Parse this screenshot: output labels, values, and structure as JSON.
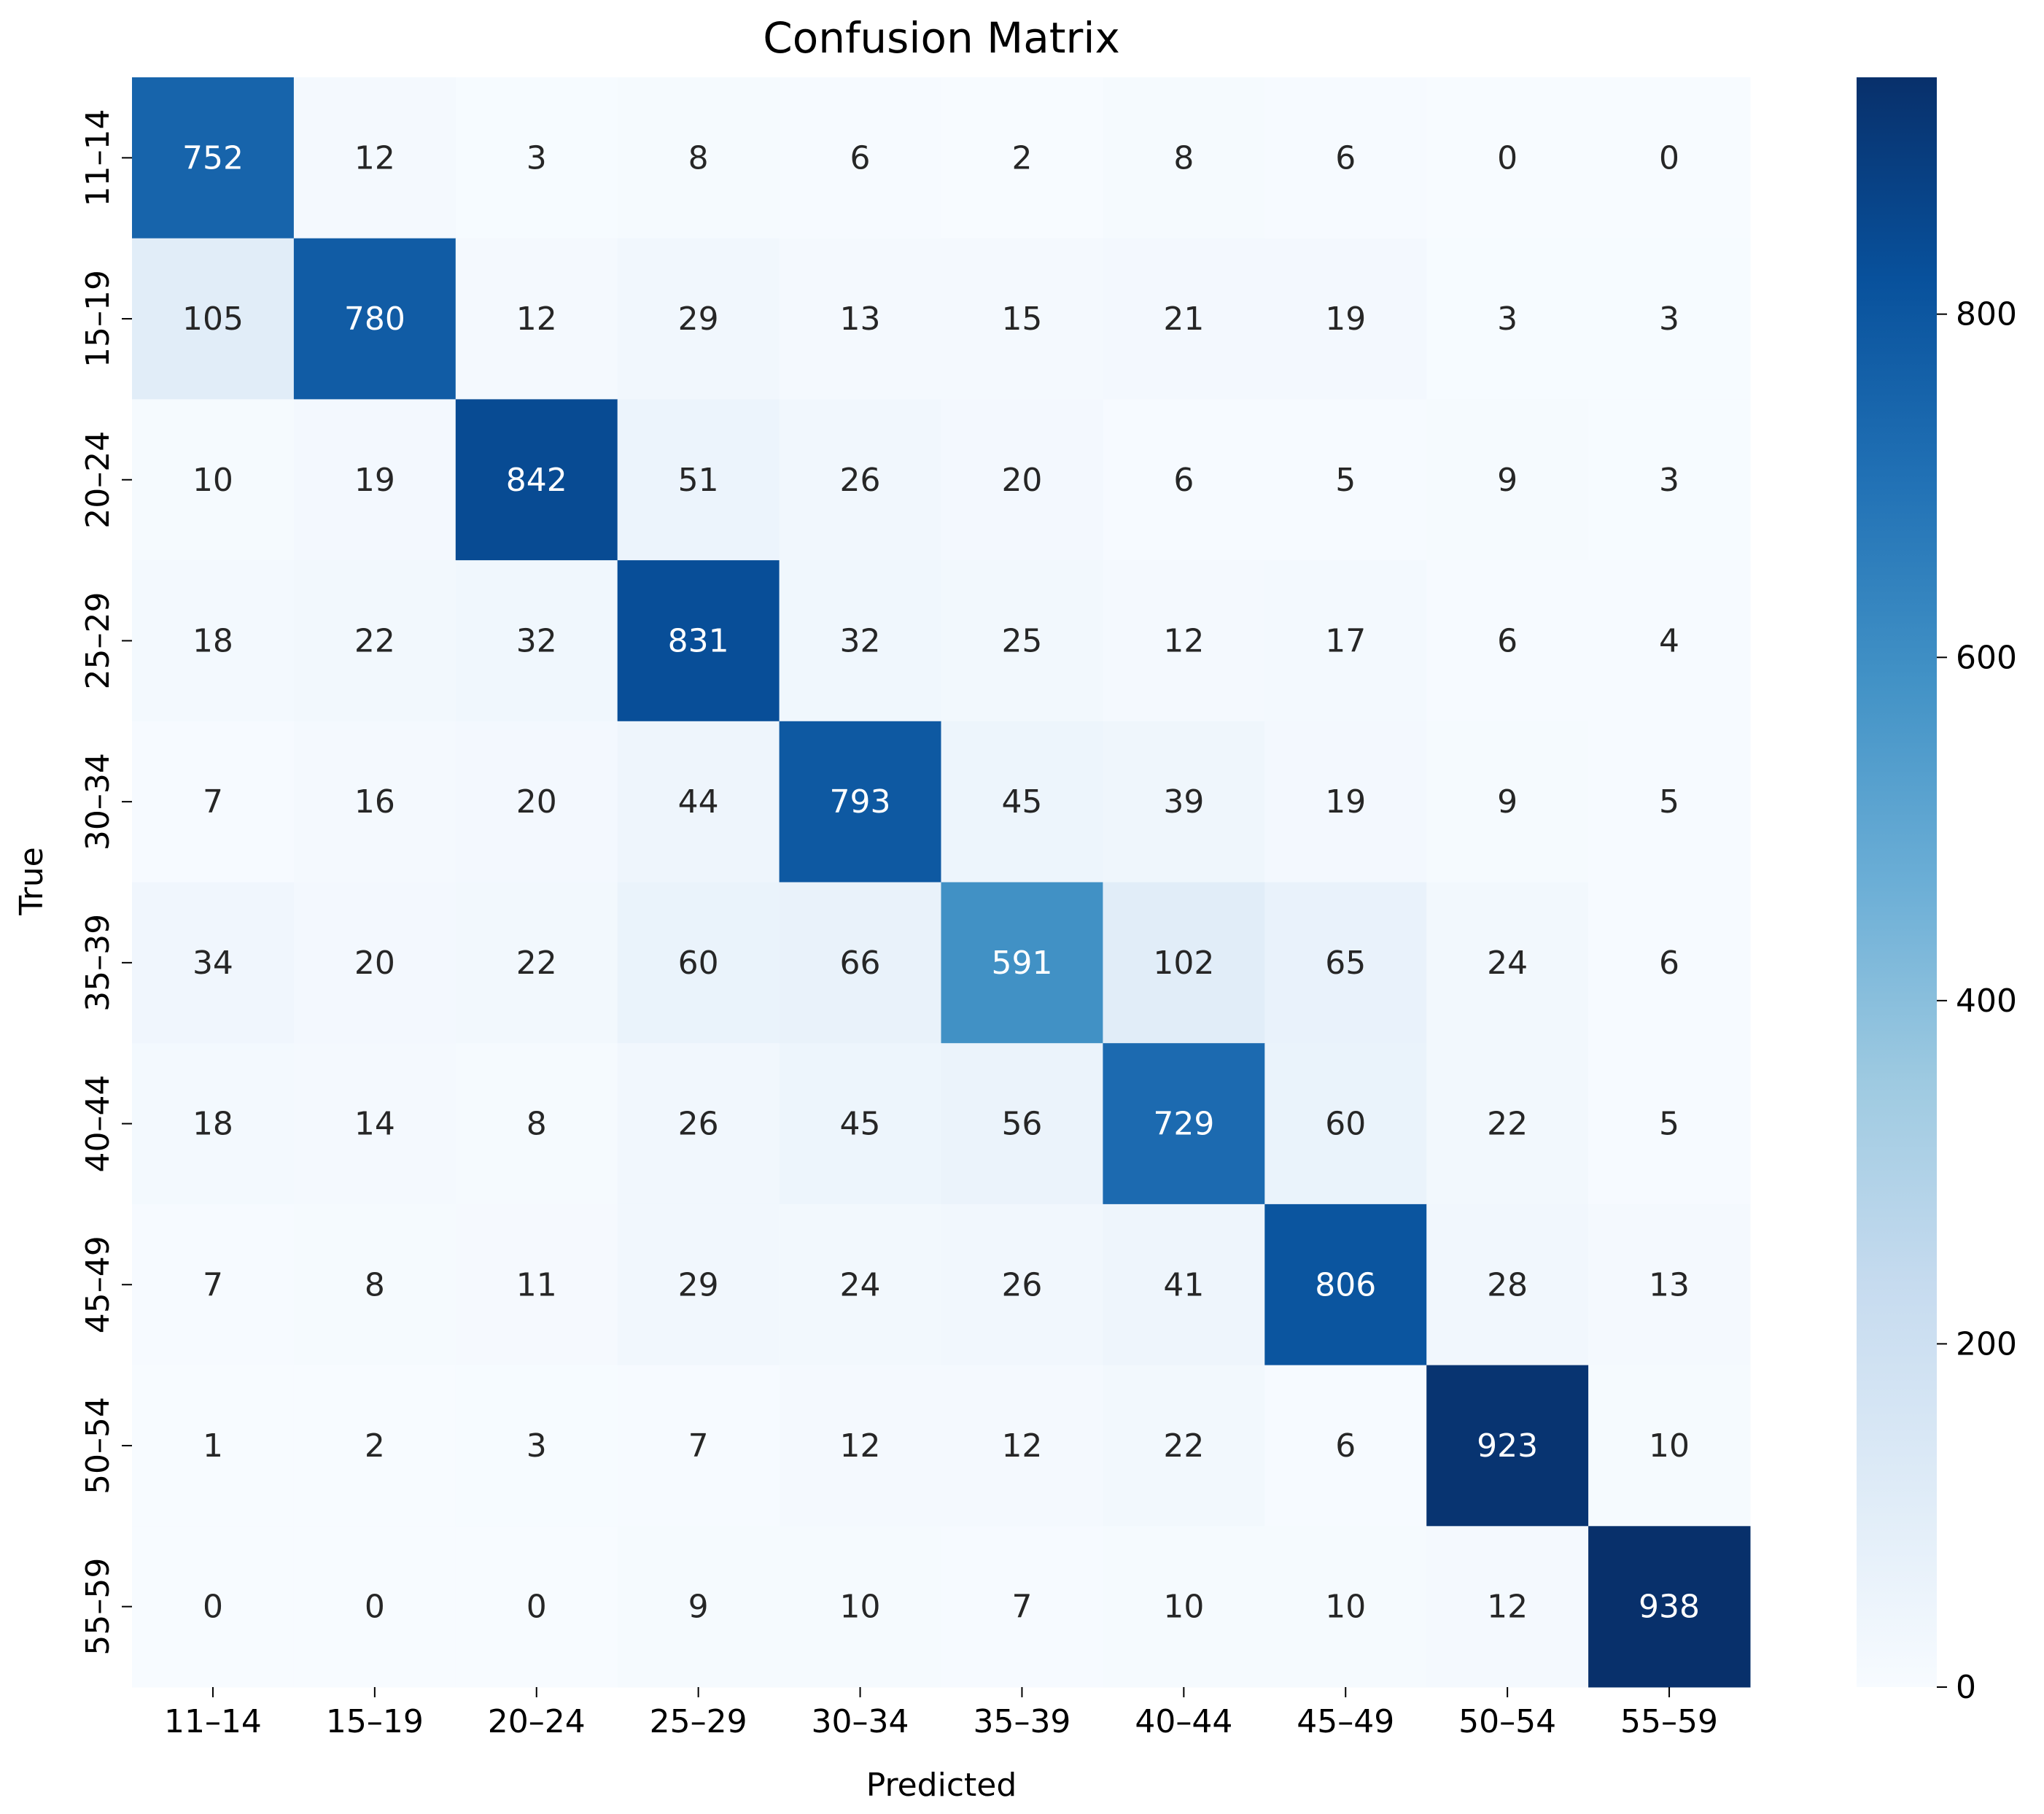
{
  "chart_data": {
    "type": "heatmap",
    "title": "Confusion Matrix",
    "xlabel": "Predicted",
    "ylabel": "True",
    "x_categories": [
      "11–14",
      "15–19",
      "20–24",
      "25–29",
      "30–34",
      "35–39",
      "40–44",
      "45–49",
      "50–54",
      "55–59"
    ],
    "y_categories": [
      "11–14",
      "15–19",
      "20–24",
      "25–29",
      "30–34",
      "35–39",
      "40–44",
      "45–49",
      "50–54",
      "55–59"
    ],
    "matrix": [
      [
        752,
        12,
        3,
        8,
        6,
        2,
        8,
        6,
        0,
        0
      ],
      [
        105,
        780,
        12,
        29,
        13,
        15,
        21,
        19,
        3,
        3
      ],
      [
        10,
        19,
        842,
        51,
        26,
        20,
        6,
        5,
        9,
        3
      ],
      [
        18,
        22,
        32,
        831,
        32,
        25,
        12,
        17,
        6,
        4
      ],
      [
        7,
        16,
        20,
        44,
        793,
        45,
        39,
        19,
        9,
        5
      ],
      [
        34,
        20,
        22,
        60,
        66,
        591,
        102,
        65,
        24,
        6
      ],
      [
        18,
        14,
        8,
        26,
        45,
        56,
        729,
        60,
        22,
        5
      ],
      [
        7,
        8,
        11,
        29,
        24,
        26,
        41,
        806,
        28,
        13
      ],
      [
        1,
        2,
        3,
        7,
        12,
        12,
        22,
        6,
        923,
        10
      ],
      [
        0,
        0,
        0,
        9,
        10,
        7,
        10,
        10,
        12,
        938
      ]
    ],
    "colormap": "Blues",
    "colorbar": {
      "min": 0,
      "max": 938,
      "ticks": [
        0,
        200,
        400,
        600,
        800
      ],
      "tick_labels": [
        "0",
        "200",
        "400",
        "600",
        "800"
      ]
    },
    "grid": false,
    "legend": "none"
  }
}
